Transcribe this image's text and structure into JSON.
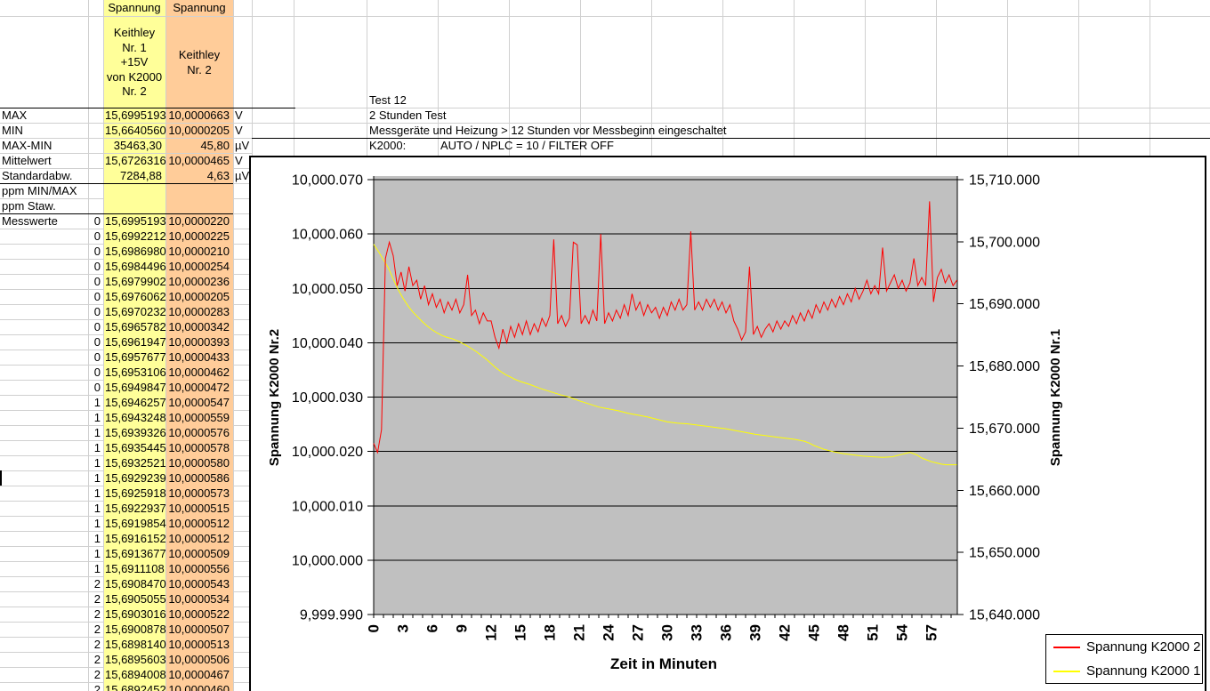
{
  "sheet": {
    "header": {
      "c_title": "Spannung",
      "d_title": "Spannung",
      "c_sub": [
        "Keithley",
        "Nr. 1",
        "+15V",
        "von K2000",
        "Nr. 2"
      ],
      "d_sub": [
        "Keithley",
        "Nr. 2"
      ]
    },
    "summary_rows": [
      {
        "label": "MAX",
        "v1": "15,6995193",
        "v2": "10,0000663",
        "unit": "V"
      },
      {
        "label": "MIN",
        "v1": "15,6640560",
        "v2": "10,0000205",
        "unit": "V"
      },
      {
        "label": "MAX-MIN",
        "v1": "35463,30",
        "v2": "45,80",
        "unit": "µV"
      },
      {
        "label": "Mittelwert",
        "v1": "15,6726316",
        "v2": "10,0000465",
        "unit": "V"
      },
      {
        "label": "Standardabw.",
        "v1": "7284,88",
        "v2": "4,63",
        "unit": "µV"
      },
      {
        "label": "ppm MIN/MAX",
        "v1": "",
        "v2": "",
        "unit": ""
      },
      {
        "label": "ppm Staw.",
        "v1": "",
        "v2": "",
        "unit": ""
      }
    ],
    "measure_label": "Messwerte",
    "data_rows": [
      [
        "0",
        "15,6995193",
        "10,0000220"
      ],
      [
        "0",
        "15,6992212",
        "10,0000225"
      ],
      [
        "0",
        "15,6986980",
        "10,0000210"
      ],
      [
        "0",
        "15,6984496",
        "10,0000254"
      ],
      [
        "0",
        "15,6979902",
        "10,0000236"
      ],
      [
        "0",
        "15,6976062",
        "10,0000205"
      ],
      [
        "0",
        "15,6970232",
        "10,0000283"
      ],
      [
        "0",
        "15,6965782",
        "10,0000342"
      ],
      [
        "0",
        "15,6961947",
        "10,0000393"
      ],
      [
        "0",
        "15,6957677",
        "10,0000433"
      ],
      [
        "0",
        "15,6953106",
        "10,0000462"
      ],
      [
        "0",
        "15,6949847",
        "10,0000472"
      ],
      [
        "1",
        "15,6946257",
        "10,0000547"
      ],
      [
        "1",
        "15,6943248",
        "10,0000559"
      ],
      [
        "1",
        "15,6939326",
        "10,0000576"
      ],
      [
        "1",
        "15,6935445",
        "10,0000578"
      ],
      [
        "1",
        "15,6932521",
        "10,0000580"
      ],
      [
        "1",
        "15,6929239",
        "10,0000586"
      ],
      [
        "1",
        "15,6925918",
        "10,0000573"
      ],
      [
        "1",
        "15,6922937",
        "10,0000515"
      ],
      [
        "1",
        "15,6919854",
        "10,0000512"
      ],
      [
        "1",
        "15,6916152",
        "10,0000512"
      ],
      [
        "1",
        "15,6913677",
        "10,0000509"
      ],
      [
        "1",
        "15,6911108",
        "10,0000556"
      ],
      [
        "2",
        "15,6908470",
        "10,0000543"
      ],
      [
        "2",
        "15,6905055",
        "10,0000534"
      ],
      [
        "2",
        "15,6903016",
        "10,0000522"
      ],
      [
        "2",
        "15,6900878",
        "10,0000507"
      ],
      [
        "2",
        "15,6898140",
        "10,0000513"
      ],
      [
        "2",
        "15,6895603",
        "10,0000506"
      ],
      [
        "2",
        "15,6894008",
        "10,0000467"
      ],
      [
        "2",
        "15,6892452",
        "10,0000460"
      ]
    ],
    "annotations": {
      "line1": "Test 12",
      "line2": "2 Stunden Test",
      "line3": "Messgeräte und Heizung > 12 Stunden vor Messbeginn eingeschaltet",
      "line4_label": "K2000:",
      "line4_value": "AUTO / NPLC = 10 / FILTER OFF"
    },
    "colors": {
      "col_c_bg": "#FFFF99",
      "col_d_bg": "#FFCC99",
      "gridline": "#d0d0d0"
    }
  },
  "chart": {
    "left_axis_title": "Spannung K2000 Nr.2",
    "right_axis_title": "Spannung K2000 Nr.1",
    "x_axis_title": "Zeit in Minuten",
    "left_ticks": [
      "10,000.070",
      "10,000.060",
      "10,000.050",
      "10,000.040",
      "10,000.030",
      "10,000.020",
      "10,000.010",
      "10,000.000",
      "9,999.990"
    ],
    "right_ticks": [
      "15,710.000",
      "15,700.000",
      "15,690.000",
      "15,680.000",
      "15,670.000",
      "15,660.000",
      "15,650.000",
      "15,640.000"
    ],
    "x_ticks": [
      0,
      3,
      6,
      9,
      12,
      15,
      18,
      21,
      24,
      27,
      30,
      33,
      36,
      39,
      42,
      45,
      48,
      51,
      54,
      57
    ],
    "legend": [
      {
        "label": "Spannung K2000 2",
        "color": "#FF0000"
      },
      {
        "label": "Spannung K2000 1",
        "color": "#FFFF00"
      }
    ],
    "colors": {
      "plot_bg": "#C0C0C0",
      "series_red": "#FF0000",
      "series_yellow": "#FFFF00"
    }
  },
  "chart_data": {
    "type": "line",
    "xlabel": "Zeit in Minuten",
    "x_range": [
      0,
      59.6
    ],
    "grid": "horizontal",
    "legend_position": "bottom-right",
    "left_axis": {
      "label": "Spannung K2000 Nr.2",
      "range": [
        9999.99,
        10000.07
      ],
      "tick_step": 0.01
    },
    "right_axis": {
      "label": "Spannung K2000 Nr.1",
      "range": [
        15640.0,
        15710.0
      ],
      "tick_step": 10
    },
    "series": [
      {
        "name": "Spannung K2000 2",
        "axis": "left",
        "color": "#FF0000",
        "t_start": 0,
        "t_step": 0.4,
        "values": [
          10000.0215,
          10000.0198,
          10000.024,
          10000.0555,
          10000.0585,
          10000.056,
          10000.0505,
          10000.053,
          10000.0495,
          10000.054,
          10000.0505,
          10000.0515,
          10000.048,
          10000.0505,
          10000.047,
          10000.049,
          10000.0465,
          10000.048,
          10000.0455,
          10000.0475,
          10000.046,
          10000.048,
          10000.0455,
          10000.047,
          10000.0525,
          10000.045,
          10000.046,
          10000.0435,
          10000.0455,
          10000.044,
          10000.044,
          10000.041,
          10000.039,
          10000.0425,
          10000.04,
          10000.043,
          10000.041,
          10000.0435,
          10000.0415,
          10000.044,
          10000.0415,
          10000.0435,
          10000.042,
          10000.0445,
          10000.043,
          10000.045,
          10000.059,
          10000.0435,
          10000.045,
          10000.043,
          10000.0445,
          10000.0585,
          10000.058,
          10000.0435,
          10000.045,
          10000.0435,
          10000.046,
          10000.044,
          10000.06,
          10000.0435,
          10000.0455,
          10000.044,
          10000.046,
          10000.0445,
          10000.047,
          10000.045,
          10000.049,
          10000.046,
          10000.0475,
          10000.045,
          10000.047,
          10000.0455,
          10000.0465,
          10000.0445,
          10000.0465,
          10000.045,
          10000.0475,
          10000.046,
          10000.048,
          10000.046,
          10000.047,
          10000.0605,
          10000.046,
          10000.0475,
          10000.046,
          10000.048,
          10000.0465,
          10000.048,
          10000.046,
          10000.0475,
          10000.0455,
          10000.047,
          10000.044,
          10000.0425,
          10000.0405,
          10000.042,
          10000.054,
          10000.0415,
          10000.043,
          10000.041,
          10000.0425,
          10000.0435,
          10000.042,
          10000.044,
          10000.0425,
          10000.044,
          10000.043,
          10000.045,
          10000.0435,
          10000.0455,
          10000.044,
          10000.046,
          10000.0445,
          10000.047,
          10000.0455,
          10000.0475,
          10000.046,
          10000.048,
          10000.0465,
          10000.0485,
          10000.047,
          10000.049,
          10000.0475,
          10000.05,
          10000.048,
          10000.0495,
          10000.0515,
          10000.049,
          10000.0505,
          10000.049,
          10000.0575,
          10000.0495,
          10000.051,
          10000.0525,
          10000.05,
          10000.0515,
          10000.0495,
          10000.051,
          10000.0555,
          10000.0505,
          10000.052,
          10000.0505,
          10000.066,
          10000.0475,
          10000.052,
          10000.0535,
          10000.051,
          10000.0525,
          10000.0505,
          10000.0515
        ]
      },
      {
        "name": "Spannung K2000 1",
        "axis": "right",
        "color": "#FFFF00",
        "points": [
          [
            0,
            15699.6
          ],
          [
            0.5,
            15698.4
          ],
          [
            1,
            15697.1
          ],
          [
            1.5,
            15695.8
          ],
          [
            2,
            15694.0
          ],
          [
            2.5,
            15692.3
          ],
          [
            3,
            15690.9
          ],
          [
            3.5,
            15689.7
          ],
          [
            4,
            15688.7
          ],
          [
            4.5,
            15687.9
          ],
          [
            5,
            15687.1
          ],
          [
            5.5,
            15686.4
          ],
          [
            6,
            15685.8
          ],
          [
            6.5,
            15685.3
          ],
          [
            7,
            15684.9
          ],
          [
            7.5,
            15684.6
          ],
          [
            8,
            15684.4
          ],
          [
            8.5,
            15684.1
          ],
          [
            9,
            15683.7
          ],
          [
            9.5,
            15683.3
          ],
          [
            10,
            15682.8
          ],
          [
            10.5,
            15682.3
          ],
          [
            11,
            15681.7
          ],
          [
            11.5,
            15681.1
          ],
          [
            12,
            15680.4
          ],
          [
            12.5,
            15679.7
          ],
          [
            13,
            15679.1
          ],
          [
            13.5,
            15678.6
          ],
          [
            14,
            15678.2
          ],
          [
            14.5,
            15677.8
          ],
          [
            15,
            15677.5
          ],
          [
            16,
            15677.0
          ],
          [
            17,
            15676.4
          ],
          [
            18,
            15675.9
          ],
          [
            19,
            15675.4
          ],
          [
            20,
            15675.0
          ],
          [
            21,
            15674.4
          ],
          [
            22,
            15673.9
          ],
          [
            23,
            15673.4
          ],
          [
            24,
            15673.1
          ],
          [
            25,
            15672.8
          ],
          [
            26,
            15672.4
          ],
          [
            27,
            15672.1
          ],
          [
            28,
            15671.8
          ],
          [
            29,
            15671.4
          ],
          [
            30,
            15671.0
          ],
          [
            31,
            15670.8
          ],
          [
            32,
            15670.7
          ],
          [
            33,
            15670.5
          ],
          [
            34,
            15670.3
          ],
          [
            35,
            15670.1
          ],
          [
            36,
            15669.9
          ],
          [
            37,
            15669.6
          ],
          [
            38,
            15669.3
          ],
          [
            39,
            15669.0
          ],
          [
            40,
            15668.8
          ],
          [
            41,
            15668.6
          ],
          [
            42,
            15668.4
          ],
          [
            43,
            15668.2
          ],
          [
            44,
            15667.9
          ],
          [
            44.5,
            15667.6
          ],
          [
            45,
            15667.2
          ],
          [
            46,
            15666.6
          ],
          [
            47,
            15666.2
          ],
          [
            48,
            15665.9
          ],
          [
            49,
            15665.7
          ],
          [
            50,
            15665.5
          ],
          [
            51,
            15665.4
          ],
          [
            52,
            15665.3
          ],
          [
            53,
            15665.4
          ],
          [
            54,
            15665.8
          ],
          [
            54.8,
            15666.1
          ],
          [
            55.5,
            15665.7
          ],
          [
            56,
            15665.2
          ],
          [
            56.5,
            15664.9
          ],
          [
            57,
            15664.6
          ],
          [
            57.5,
            15664.4
          ],
          [
            58,
            15664.2
          ],
          [
            58.5,
            15664.1
          ],
          [
            59.2,
            15664.1
          ],
          [
            59.6,
            15664.1
          ]
        ]
      }
    ]
  }
}
